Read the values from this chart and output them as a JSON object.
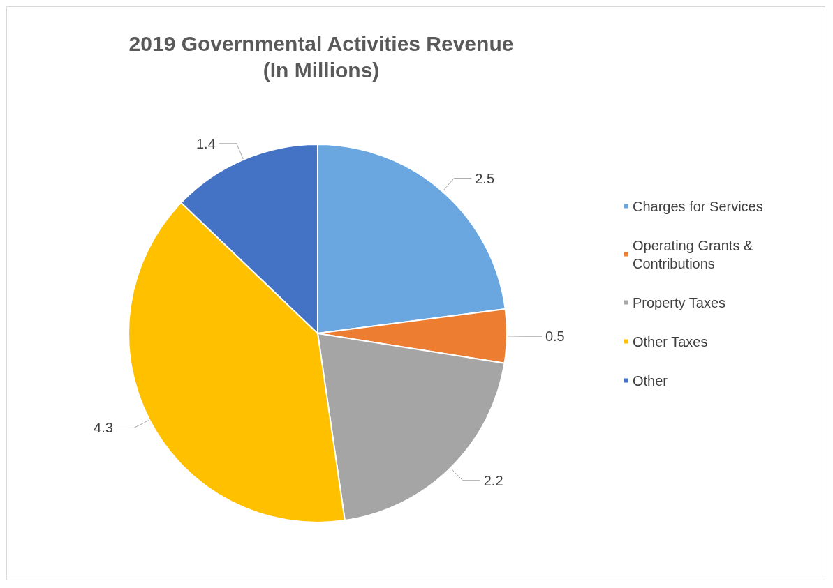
{
  "chart_data": {
    "type": "pie",
    "title": "2019 Governmental Activities Revenue\n(In Millions)",
    "categories": [
      "Charges for Services",
      "Operating Grants & Contributions",
      "Property Taxes",
      "Other Taxes",
      "Other"
    ],
    "values": [
      2.5,
      0.5,
      2.2,
      4.3,
      1.4
    ],
    "colors": [
      "#6aa6e0",
      "#ed7d31",
      "#a5a5a5",
      "#ffc000",
      "#4472c4"
    ],
    "data_labels": true,
    "legend": "right"
  }
}
